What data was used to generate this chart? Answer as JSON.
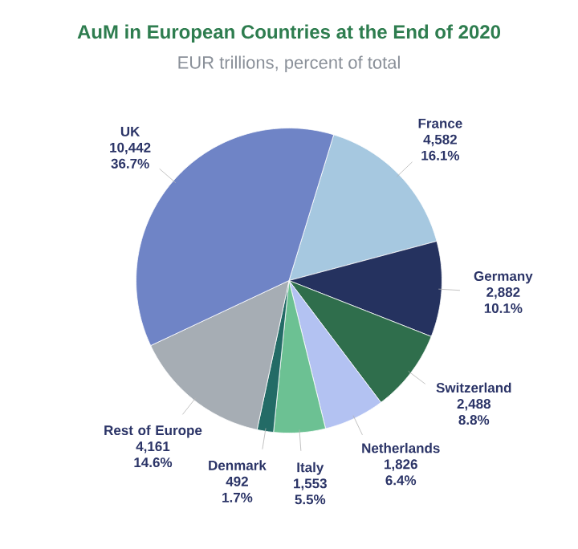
{
  "chart_data": {
    "type": "pie",
    "title": "AuM in European Countries at the End of 2020",
    "subtitle": "EUR trillions, percent of total",
    "categories": [
      "France",
      "Germany",
      "Switzerland",
      "Netherlands",
      "Italy",
      "Denmark",
      "Rest of Europe",
      "UK"
    ],
    "values": [
      4582,
      2882,
      2488,
      1826,
      1553,
      492,
      4161,
      10442
    ],
    "value_labels": [
      "4,582",
      "2,882",
      "2,488",
      "1,826",
      "1,553",
      "492",
      "4,161",
      "10,442"
    ],
    "annotations": [
      "16.1%",
      "10.1%",
      "8.8%",
      "6.4%",
      "5.5%",
      "1.7%",
      "14.6%",
      "36.7%"
    ],
    "colors": [
      "#a6c8e0",
      "#25325f",
      "#2f6e4c",
      "#b3c2f2",
      "#6cc193",
      "#236b66",
      "#a6adb4",
      "#6f84c6"
    ]
  }
}
